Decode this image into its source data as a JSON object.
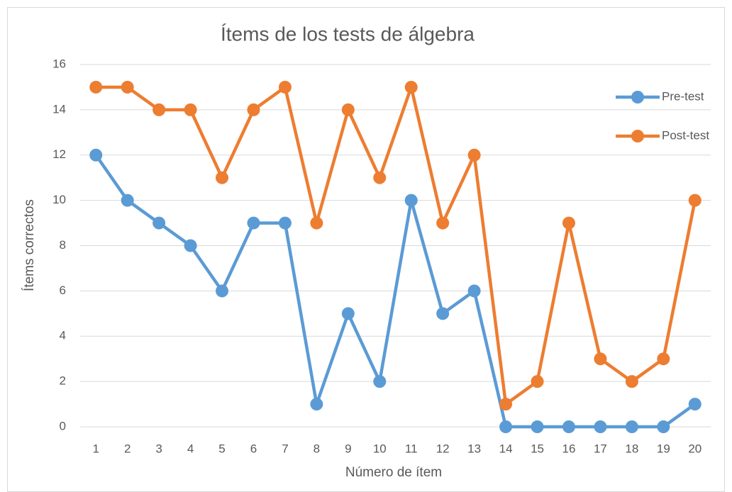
{
  "chart_data": {
    "type": "line",
    "title": "Ítems de los tests de álgebra",
    "x_label": "Número de ítem",
    "y_label": "Ítems correctos",
    "categories": [
      "1",
      "2",
      "3",
      "4",
      "5",
      "6",
      "7",
      "8",
      "9",
      "10",
      "11",
      "12",
      "13",
      "14",
      "15",
      "16",
      "17",
      "18",
      "19",
      "20"
    ],
    "series": [
      {
        "name": "Pre-test",
        "color": "#5b9bd5",
        "values": [
          12,
          10,
          9,
          8,
          6,
          9,
          9,
          1,
          5,
          2,
          10,
          5,
          6,
          0,
          0,
          0,
          0,
          0,
          0,
          1
        ]
      },
      {
        "name": "Post-test",
        "color": "#ed7d31",
        "values": [
          15,
          15,
          14,
          14,
          11,
          14,
          15,
          9,
          14,
          11,
          15,
          9,
          12,
          1,
          2,
          9,
          3,
          2,
          3,
          10
        ]
      }
    ],
    "ylim": [
      0,
      16
    ],
    "yticks": [
      0,
      2,
      4,
      6,
      8,
      10,
      12,
      14,
      16
    ],
    "grid": true,
    "legend": "right"
  }
}
